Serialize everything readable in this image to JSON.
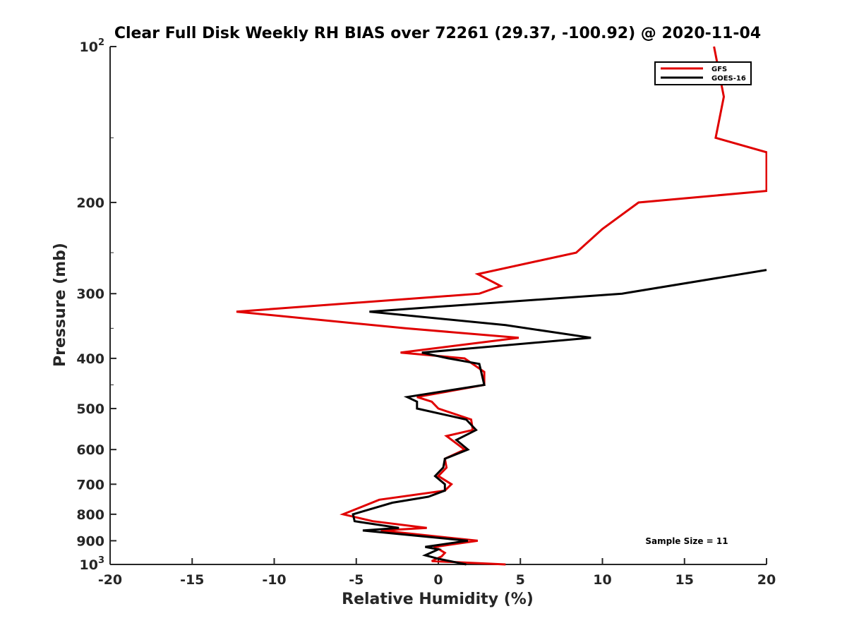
{
  "chart_data": {
    "type": "line",
    "title": "Clear Full Disk Weekly RH BIAS over 72261 (29.37, -100.92) @ 2020-11-04",
    "xlabel": "Relative Humidity (%)",
    "ylabel": "Pressure (mb)",
    "xlim": [
      -20,
      20
    ],
    "ylim": [
      100,
      1000
    ],
    "yscale": "log",
    "yreversed": true,
    "grid": false,
    "legend_location": "top-right",
    "x_ticks": [
      "-20",
      "-15",
      "-10",
      "-5",
      "0",
      "5",
      "10",
      "15",
      "20"
    ],
    "y_ticks": [
      {
        "value": 100,
        "base": "10",
        "exp": "2"
      },
      {
        "value": 200,
        "base": "200",
        "exp": ""
      },
      {
        "value": 300,
        "base": "300",
        "exp": ""
      },
      {
        "value": 400,
        "base": "400",
        "exp": ""
      },
      {
        "value": 500,
        "base": "500",
        "exp": ""
      },
      {
        "value": 600,
        "base": "600",
        "exp": ""
      },
      {
        "value": 700,
        "base": "700",
        "exp": ""
      },
      {
        "value": 800,
        "base": "800",
        "exp": ""
      },
      {
        "value": 900,
        "base": "900",
        "exp": ""
      },
      {
        "value": 1000,
        "base": "10",
        "exp": "3"
      }
    ],
    "annotation": "Sample Size = 11",
    "series": [
      {
        "name": "GFS",
        "color": "#e00000",
        "points": [
          [
            16.8,
            100
          ],
          [
            17.4,
            125
          ],
          [
            16.9,
            150
          ],
          [
            20.0,
            160
          ],
          [
            20.0,
            190
          ],
          [
            12.2,
            200
          ],
          [
            10.0,
            225
          ],
          [
            8.4,
            250
          ],
          [
            2.4,
            275
          ],
          [
            3.8,
            290
          ],
          [
            2.5,
            300
          ],
          [
            -12.3,
            325
          ],
          [
            -2.0,
            350
          ],
          [
            4.9,
            365
          ],
          [
            -2.3,
            390
          ],
          [
            1.6,
            400
          ],
          [
            2.8,
            425
          ],
          [
            2.8,
            450
          ],
          [
            -1.3,
            475
          ],
          [
            -0.4,
            485
          ],
          [
            0.0,
            500
          ],
          [
            2.0,
            525
          ],
          [
            2.1,
            550
          ],
          [
            0.5,
            565
          ],
          [
            1.6,
            600
          ],
          [
            0.4,
            625
          ],
          [
            0.5,
            650
          ],
          [
            0.0,
            675
          ],
          [
            0.8,
            700
          ],
          [
            0.4,
            720
          ],
          [
            -3.6,
            750
          ],
          [
            -5.8,
            800
          ],
          [
            -4.0,
            825
          ],
          [
            -0.7,
            850
          ],
          [
            -3.5,
            860
          ],
          [
            2.4,
            900
          ],
          [
            -0.2,
            925
          ],
          [
            0.4,
            950
          ],
          [
            0.2,
            965
          ],
          [
            -0.4,
            985
          ],
          [
            4.1,
            1000
          ]
        ]
      },
      {
        "name": "GOES-16",
        "color": "#000000",
        "points": [
          [
            20.0,
            270
          ],
          [
            11.2,
            300
          ],
          [
            -4.2,
            325
          ],
          [
            4.1,
            345
          ],
          [
            9.3,
            365
          ],
          [
            -1.0,
            390
          ],
          [
            0.6,
            400
          ],
          [
            2.5,
            410
          ],
          [
            2.8,
            450
          ],
          [
            -1.9,
            475
          ],
          [
            -1.3,
            485
          ],
          [
            -1.3,
            500
          ],
          [
            1.7,
            525
          ],
          [
            2.3,
            550
          ],
          [
            1.1,
            575
          ],
          [
            1.8,
            600
          ],
          [
            0.4,
            625
          ],
          [
            0.3,
            650
          ],
          [
            -0.2,
            675
          ],
          [
            0.4,
            700
          ],
          [
            0.4,
            720
          ],
          [
            -0.6,
            740
          ],
          [
            -2.8,
            760
          ],
          [
            -5.2,
            800
          ],
          [
            -5.1,
            825
          ],
          [
            -2.4,
            850
          ],
          [
            -4.6,
            860
          ],
          [
            1.8,
            900
          ],
          [
            -0.8,
            925
          ],
          [
            0.0,
            935
          ],
          [
            -0.8,
            960
          ],
          [
            0.0,
            975
          ],
          [
            1.7,
            1000
          ]
        ]
      }
    ]
  }
}
